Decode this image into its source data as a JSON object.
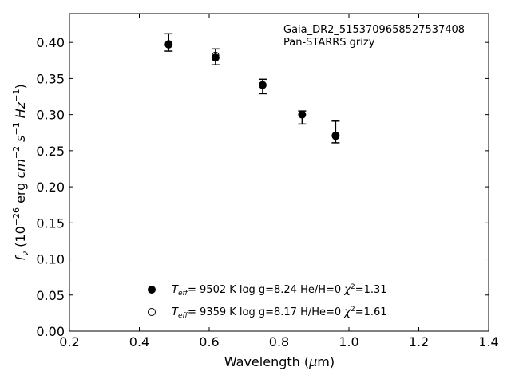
{
  "chart_data": {
    "type": "scatter",
    "annotation": [
      "Gaia_DR2_5153709658527537408",
      "Pan-STARRS grizy"
    ],
    "xlabel": {
      "main": "Wavelength (",
      "mu": "μ",
      "tail": "m)"
    },
    "ylabel": {
      "f": "f",
      "nu": "ν",
      "p1": " (10",
      "e26": "−26",
      "p2": " erg ",
      "cm": "cm",
      "em2": "−2",
      "s": " s",
      "em1": "−1",
      "hz": " Hz",
      "em1b": "−1",
      "close": ")"
    },
    "xlim": [
      0.2,
      1.4
    ],
    "ylim": [
      0.0,
      0.44
    ],
    "xticks": [
      0.2,
      0.4,
      0.6,
      0.8,
      1.0,
      1.2,
      1.4
    ],
    "xtick_labels": [
      "0.2",
      "0.4",
      "0.6",
      "0.8",
      "1.0",
      "1.2",
      "1.4"
    ],
    "yticks": [
      0.0,
      0.05,
      0.1,
      0.15,
      0.2,
      0.25,
      0.3,
      0.35,
      0.4
    ],
    "ytick_labels": [
      "0.00",
      "0.05",
      "0.10",
      "0.15",
      "0.20",
      "0.25",
      "0.30",
      "0.35",
      "0.40"
    ],
    "observed": {
      "x": [
        0.484,
        0.618,
        0.753,
        0.866,
        0.962
      ],
      "y": [
        0.4,
        0.38,
        0.339,
        0.296,
        0.276
      ],
      "yerr": [
        0.012,
        0.011,
        0.01,
        0.009,
        0.015
      ]
    },
    "series": [
      {
        "marker": "filled",
        "x": [
          0.484,
          0.618,
          0.753,
          0.866,
          0.962
        ],
        "y": [
          0.397,
          0.379,
          0.341,
          0.3,
          0.271
        ]
      },
      {
        "marker": "open",
        "x": [
          0.484,
          0.618,
          0.753,
          0.866,
          0.962
        ],
        "y": [
          0.398,
          0.382,
          0.341,
          0.3,
          0.27
        ]
      }
    ],
    "legend": [
      {
        "marker": "filled",
        "t": "T",
        "sub": "eff",
        "rest1": "=  9502 K  log g=8.24  He/H=0  ",
        "chi": "χ",
        "sup": "2",
        "rest2": "=1.31"
      },
      {
        "marker": "open",
        "t": "T",
        "sub": "eff",
        "rest1": "=  9359 K  log g=8.17  H/He=0  ",
        "chi": "χ",
        "sup": "2",
        "rest2": "=1.61"
      }
    ],
    "legend_position": "lower-center",
    "grid": false
  }
}
